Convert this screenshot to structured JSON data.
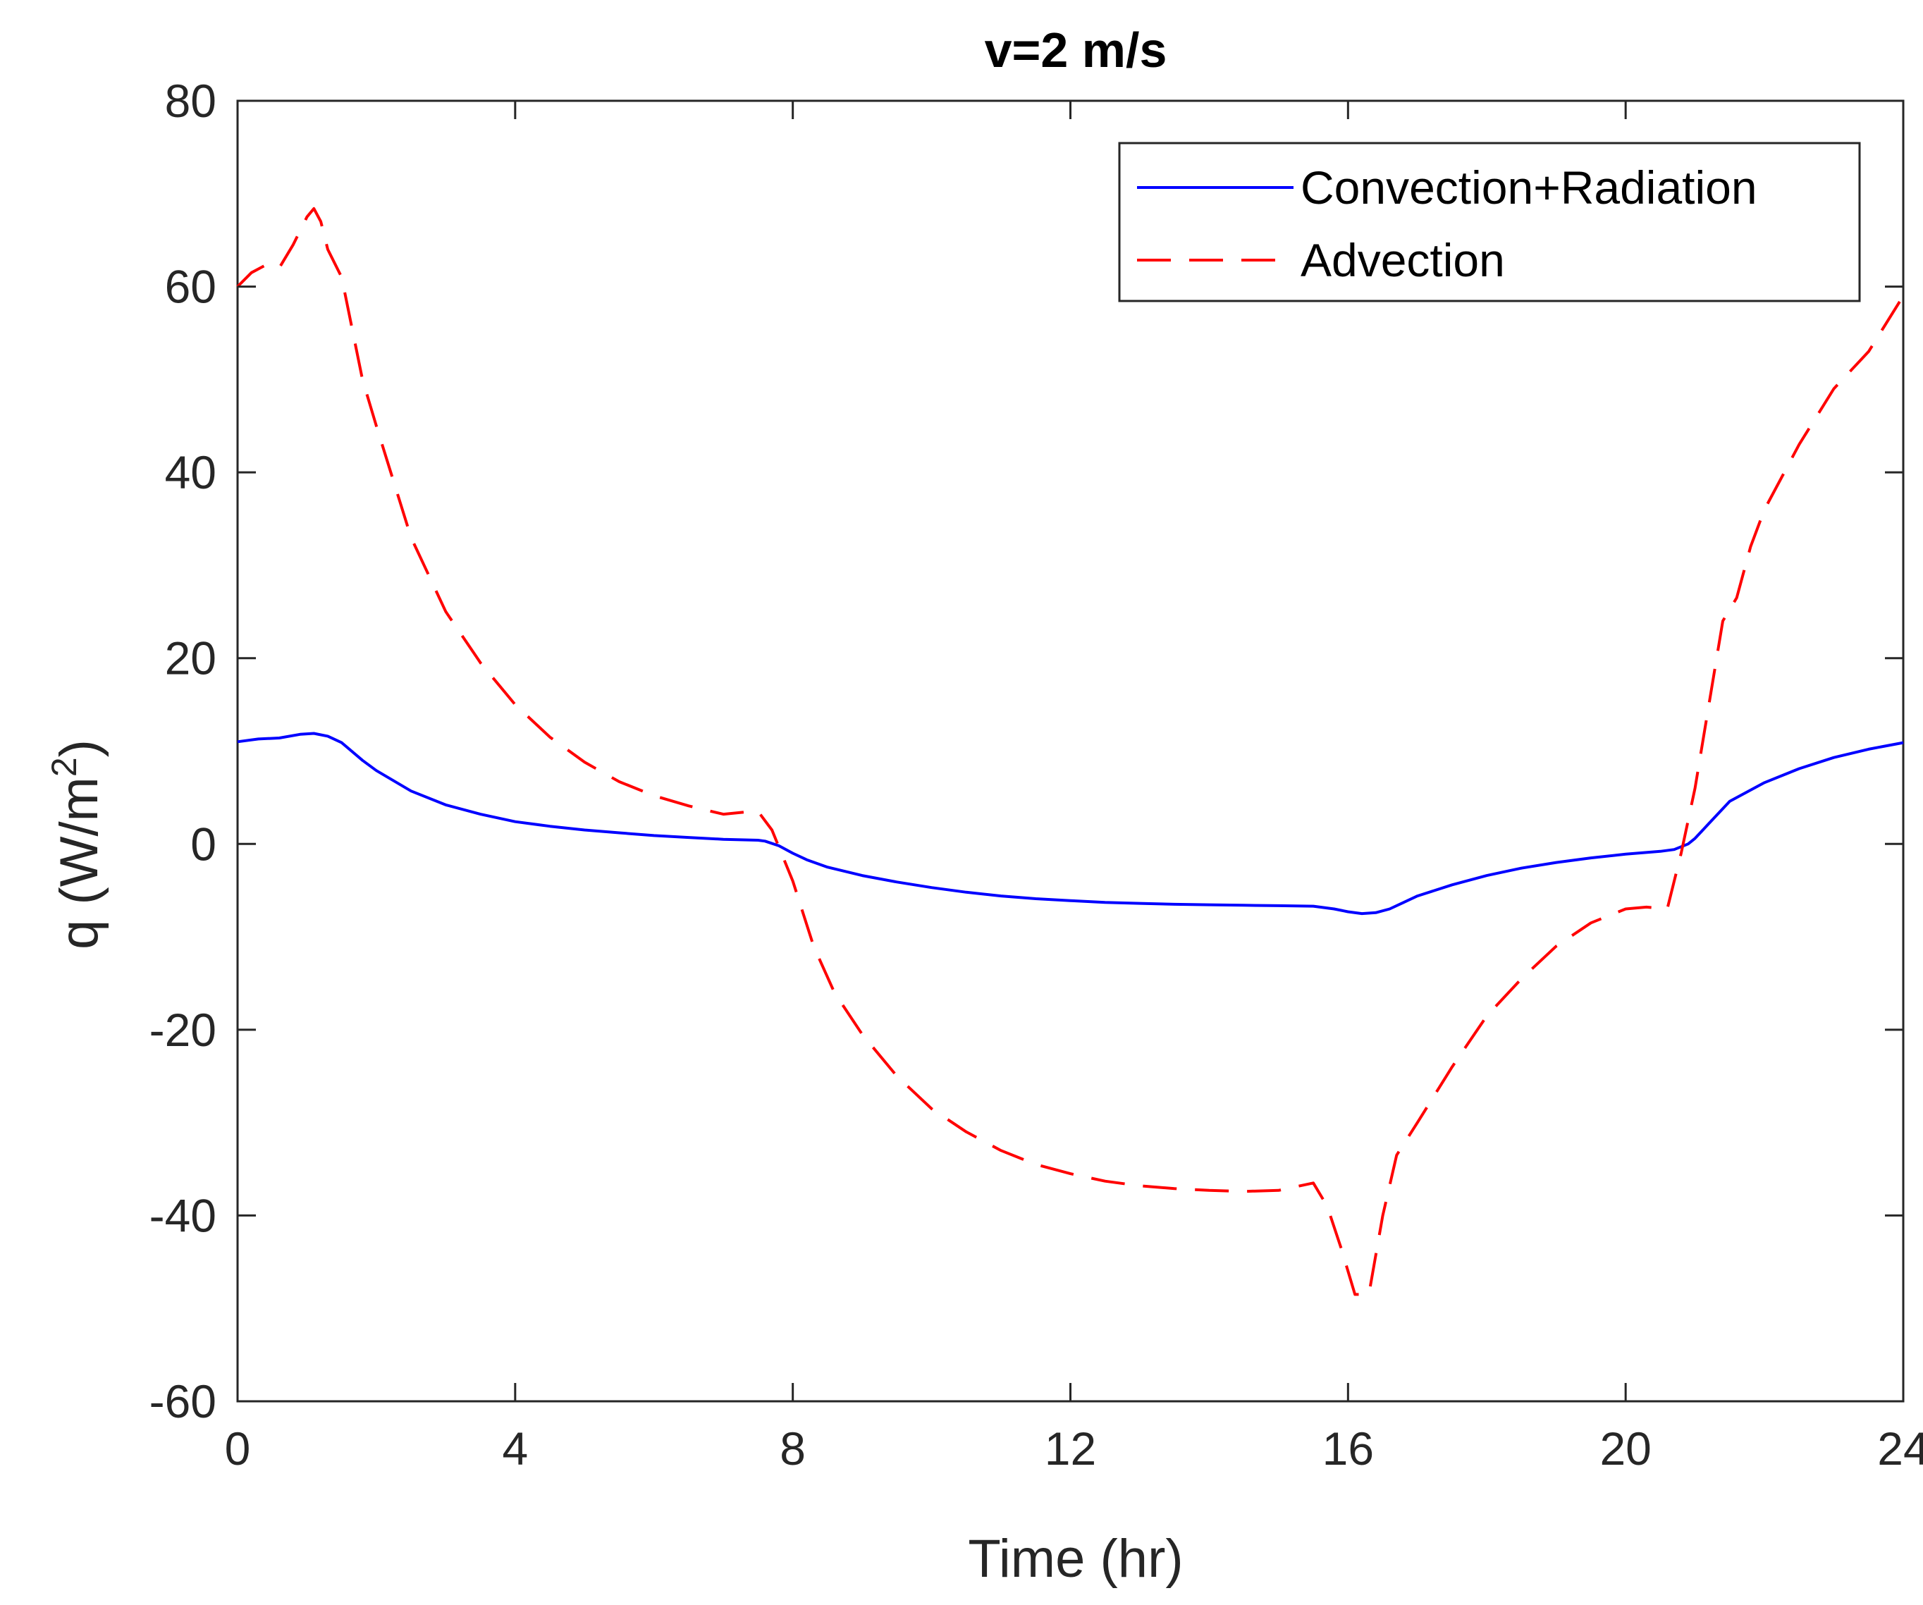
{
  "chart_data": {
    "type": "line",
    "title": "v=2 m/s",
    "xlabel": "Time (hr)",
    "ylabel_base": "q (W/m",
    "ylabel_sup": "2",
    "ylabel_end": ")",
    "xlim": [
      0,
      24
    ],
    "ylim": [
      -60,
      80
    ],
    "xticks": [
      0,
      4,
      8,
      12,
      16,
      20,
      24
    ],
    "yticks": [
      -60,
      -40,
      -20,
      0,
      20,
      40,
      60,
      80
    ],
    "xtick_labels": [
      "0",
      "4",
      "8",
      "12",
      "16",
      "20",
      "24"
    ],
    "ytick_labels": [
      "-60",
      "-40",
      "-20",
      "0",
      "20",
      "40",
      "60",
      "80"
    ],
    "grid": false,
    "legend_position": "top-right",
    "series": [
      {
        "name": "Convection+Radiation",
        "color": "#0000ff",
        "style": "solid",
        "x": [
          0,
          0.3,
          0.6,
          0.9,
          1.1,
          1.3,
          1.5,
          1.8,
          2.0,
          2.5,
          3.0,
          3.5,
          4.0,
          4.5,
          5.0,
          5.5,
          6.0,
          6.5,
          7.0,
          7.5,
          7.6,
          7.8,
          8.0,
          8.2,
          8.5,
          9.0,
          9.5,
          10.0,
          10.5,
          11.0,
          11.5,
          12.0,
          12.5,
          13.0,
          13.5,
          14.0,
          14.5,
          15.0,
          15.5,
          15.8,
          16.0,
          16.2,
          16.4,
          16.6,
          16.8,
          17.0,
          17.5,
          18.0,
          18.5,
          19.0,
          19.5,
          20.0,
          20.5,
          20.7,
          20.9,
          21.0,
          21.2,
          21.5,
          22.0,
          22.5,
          23.0,
          23.5,
          24.0
        ],
        "values": [
          11.0,
          11.3,
          11.4,
          11.8,
          11.9,
          11.6,
          10.9,
          9.0,
          7.9,
          5.7,
          4.2,
          3.2,
          2.4,
          1.9,
          1.5,
          1.2,
          0.9,
          0.7,
          0.5,
          0.4,
          0.3,
          -0.2,
          -1.0,
          -1.7,
          -2.5,
          -3.4,
          -4.1,
          -4.7,
          -5.2,
          -5.6,
          -5.9,
          -6.1,
          -6.3,
          -6.4,
          -6.5,
          -6.55,
          -6.6,
          -6.65,
          -6.7,
          -7.0,
          -7.3,
          -7.5,
          -7.4,
          -7.0,
          -6.3,
          -5.6,
          -4.4,
          -3.4,
          -2.6,
          -2.0,
          -1.5,
          -1.1,
          -0.8,
          -0.6,
          0.0,
          0.6,
          2.2,
          4.6,
          6.6,
          8.1,
          9.3,
          10.2,
          10.9
        ]
      },
      {
        "name": "Advection",
        "color": "#ff0000",
        "style": "dashed",
        "x": [
          0,
          0.2,
          0.4,
          0.6,
          0.8,
          1.0,
          1.1,
          1.2,
          1.3,
          1.5,
          1.8,
          2.0,
          2.5,
          3.0,
          3.5,
          4.0,
          4.5,
          5.0,
          5.5,
          6.0,
          6.5,
          7.0,
          7.4,
          7.5,
          7.7,
          8.0,
          8.3,
          8.6,
          9.0,
          9.5,
          10.0,
          10.5,
          11.0,
          11.5,
          12.0,
          12.5,
          13.0,
          13.5,
          14.0,
          14.5,
          15.0,
          15.5,
          15.7,
          15.9,
          16.1,
          16.3,
          16.5,
          16.7,
          17.0,
          17.5,
          18.0,
          18.5,
          19.0,
          19.5,
          20.0,
          20.3,
          20.6,
          20.8,
          21.0,
          21.2,
          21.4,
          21.6,
          21.8,
          22.0,
          22.5,
          23.0,
          23.5,
          24.0
        ],
        "values": [
          60.0,
          61.5,
          62.3,
          62.0,
          64.5,
          67.5,
          68.4,
          67.0,
          64.0,
          61.0,
          50.0,
          45.0,
          33.0,
          25.0,
          19.5,
          15.0,
          11.5,
          8.8,
          6.7,
          5.2,
          4.1,
          3.2,
          3.5,
          3.5,
          1.5,
          -4.0,
          -11.0,
          -16.0,
          -20.5,
          -25.0,
          -28.5,
          -31.0,
          -33.0,
          -34.5,
          -35.5,
          -36.3,
          -36.8,
          -37.1,
          -37.3,
          -37.4,
          -37.3,
          -36.5,
          -39.0,
          -43.5,
          -48.5,
          -48.5,
          -40.0,
          -33.5,
          -30.0,
          -24.0,
          -18.5,
          -14.5,
          -11.0,
          -8.5,
          -7.0,
          -6.8,
          -7.0,
          -1.0,
          6.0,
          15.0,
          24.0,
          26.5,
          32.0,
          36.0,
          43.0,
          49.0,
          53.0,
          59.0
        ]
      }
    ]
  }
}
